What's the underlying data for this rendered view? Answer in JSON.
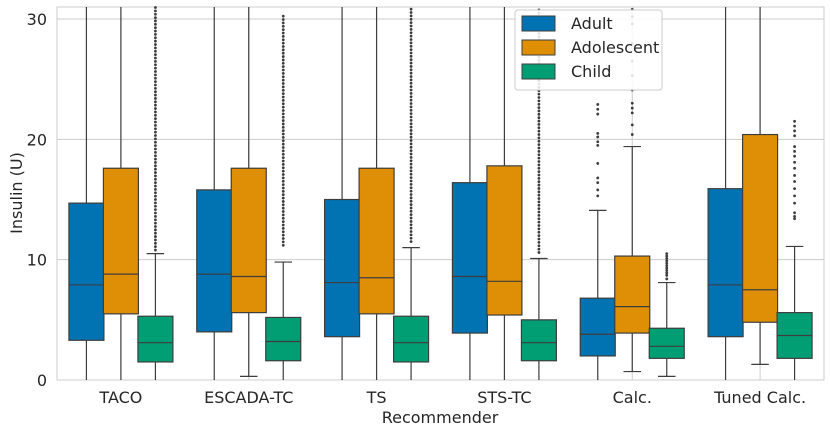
{
  "chart_data": {
    "type": "box",
    "xlabel": "Recommender",
    "ylabel": "Insulin (U)",
    "ylim": [
      0,
      31
    ],
    "yticks": [
      0,
      10,
      20,
      30
    ],
    "grid": true,
    "legend_position": "top-right",
    "categories": [
      "TACO",
      "ESCADA-TC",
      "TS",
      "STS-TC",
      "Calc.",
      "Tuned Calc."
    ],
    "series": [
      {
        "name": "Adult",
        "color": "#0173b2",
        "boxes": [
          {
            "whislo": 0,
            "q1": 3.3,
            "median": 7.9,
            "q3": 14.7,
            "whishi": 31,
            "fliers": []
          },
          {
            "whislo": 0,
            "q1": 4.0,
            "median": 8.8,
            "q3": 15.8,
            "whishi": 31,
            "fliers": []
          },
          {
            "whislo": 0,
            "q1": 3.6,
            "median": 8.1,
            "q3": 15.0,
            "whishi": 31,
            "fliers": []
          },
          {
            "whislo": 0,
            "q1": 3.9,
            "median": 8.6,
            "q3": 16.4,
            "whishi": 31,
            "fliers": []
          },
          {
            "whislo": 0,
            "q1": 2.0,
            "median": 3.8,
            "q3": 6.8,
            "whishi": 14.1,
            "fliers": [
              15.3,
              15.8,
              16.4,
              16.8,
              18.0,
              19.5,
              19.8,
              20.2,
              20.5,
              22.1,
              22.5,
              22.9
            ]
          },
          {
            "whislo": 0,
            "q1": 3.6,
            "median": 7.9,
            "q3": 15.9,
            "whishi": 31,
            "fliers": []
          }
        ]
      },
      {
        "name": "Adolescent",
        "color": "#de8f05",
        "boxes": [
          {
            "whislo": 0,
            "q1": 5.5,
            "median": 8.8,
            "q3": 17.6,
            "whishi": 31,
            "fliers": []
          },
          {
            "whislo": 0.3,
            "q1": 5.6,
            "median": 8.6,
            "q3": 17.6,
            "whishi": 31,
            "fliers": []
          },
          {
            "whislo": 0,
            "q1": 5.5,
            "median": 8.5,
            "q3": 17.6,
            "whishi": 31,
            "fliers": []
          },
          {
            "whislo": 0,
            "q1": 5.4,
            "median": 8.2,
            "q3": 17.8,
            "whishi": 31,
            "fliers": []
          },
          {
            "whislo": 0.7,
            "q1": 3.9,
            "median": 6.1,
            "q3": 10.3,
            "whishi": 19.4,
            "fliers": [
              20.4,
              21.2,
              22.2,
              22.6,
              23.0,
              24.1,
              25.3,
              26.5,
              28.0,
              29.6,
              30.2,
              30.8
            ]
          },
          {
            "whislo": 1.3,
            "q1": 4.8,
            "median": 7.5,
            "q3": 20.4,
            "whishi": 31,
            "fliers": []
          }
        ]
      },
      {
        "name": "Child",
        "color": "#029e73",
        "boxes": [
          {
            "whislo": 0,
            "q1": 1.5,
            "median": 3.1,
            "q3": 5.3,
            "whishi": 10.5,
            "fliers": "dense:10.8:31"
          },
          {
            "whislo": 0,
            "q1": 1.6,
            "median": 3.2,
            "q3": 5.2,
            "whishi": 9.8,
            "fliers": "dense:11.2:30.3"
          },
          {
            "whislo": 0,
            "q1": 1.5,
            "median": 3.1,
            "q3": 5.3,
            "whishi": 11.0,
            "fliers": "dense:11.5:31"
          },
          {
            "whislo": 0,
            "q1": 1.6,
            "median": 3.1,
            "q3": 5.0,
            "whishi": 10.1,
            "fliers": "dense:10.6:31"
          },
          {
            "whislo": 0.3,
            "q1": 1.8,
            "median": 2.8,
            "q3": 4.3,
            "whishi": 8.1,
            "fliers": [
              8.4,
              8.7,
              8.9,
              9.1,
              9.3,
              9.5,
              9.7,
              9.9,
              10.1,
              10.3,
              10.5
            ]
          },
          {
            "whislo": 0,
            "q1": 1.8,
            "median": 3.7,
            "q3": 5.6,
            "whishi": 11.1,
            "fliers": [
              13.4,
              13.6,
              13.9,
              14.7,
              15.3,
              15.9,
              16.5,
              17.0,
              17.6,
              18.1,
              18.6,
              19.0,
              19.4,
              20.3,
              20.7,
              21.1,
              21.5
            ]
          }
        ]
      }
    ]
  }
}
